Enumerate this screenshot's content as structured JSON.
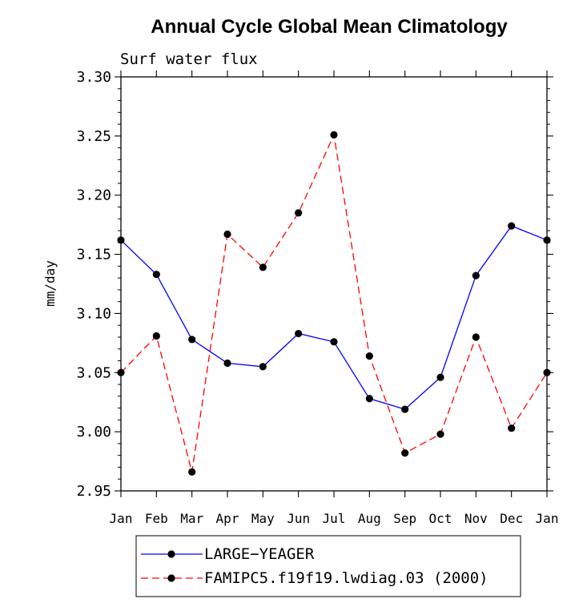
{
  "chart_data": {
    "type": "line",
    "title": "Annual Cycle Global Mean Climatology",
    "subtitle": "Surf water flux",
    "xlabel": "",
    "ylabel": "mm/day",
    "categories": [
      "Jan",
      "Feb",
      "Mar",
      "Apr",
      "May",
      "Jun",
      "Jul",
      "Aug",
      "Sep",
      "Oct",
      "Nov",
      "Dec",
      "Jan"
    ],
    "ylim": [
      2.95,
      3.3
    ],
    "yticks": [
      "2.95",
      "3.00",
      "3.05",
      "3.10",
      "3.15",
      "3.20",
      "3.25",
      "3.30"
    ],
    "grid": false,
    "legend_position": "bottom",
    "series": [
      {
        "name": "LARGE−YEAGER",
        "color": "#0000ff",
        "dash": "solid",
        "values": [
          3.162,
          3.133,
          3.078,
          3.058,
          3.055,
          3.083,
          3.076,
          3.028,
          3.019,
          3.046,
          3.132,
          3.174,
          3.162
        ]
      },
      {
        "name": "FAMIPC5.f19f19.lwdiag.03 (2000)",
        "color": "#ff0000",
        "dash": "dashed",
        "values": [
          3.05,
          3.081,
          2.966,
          3.167,
          3.139,
          3.185,
          3.251,
          3.064,
          2.982,
          2.998,
          3.08,
          3.003,
          3.05
        ]
      }
    ]
  }
}
